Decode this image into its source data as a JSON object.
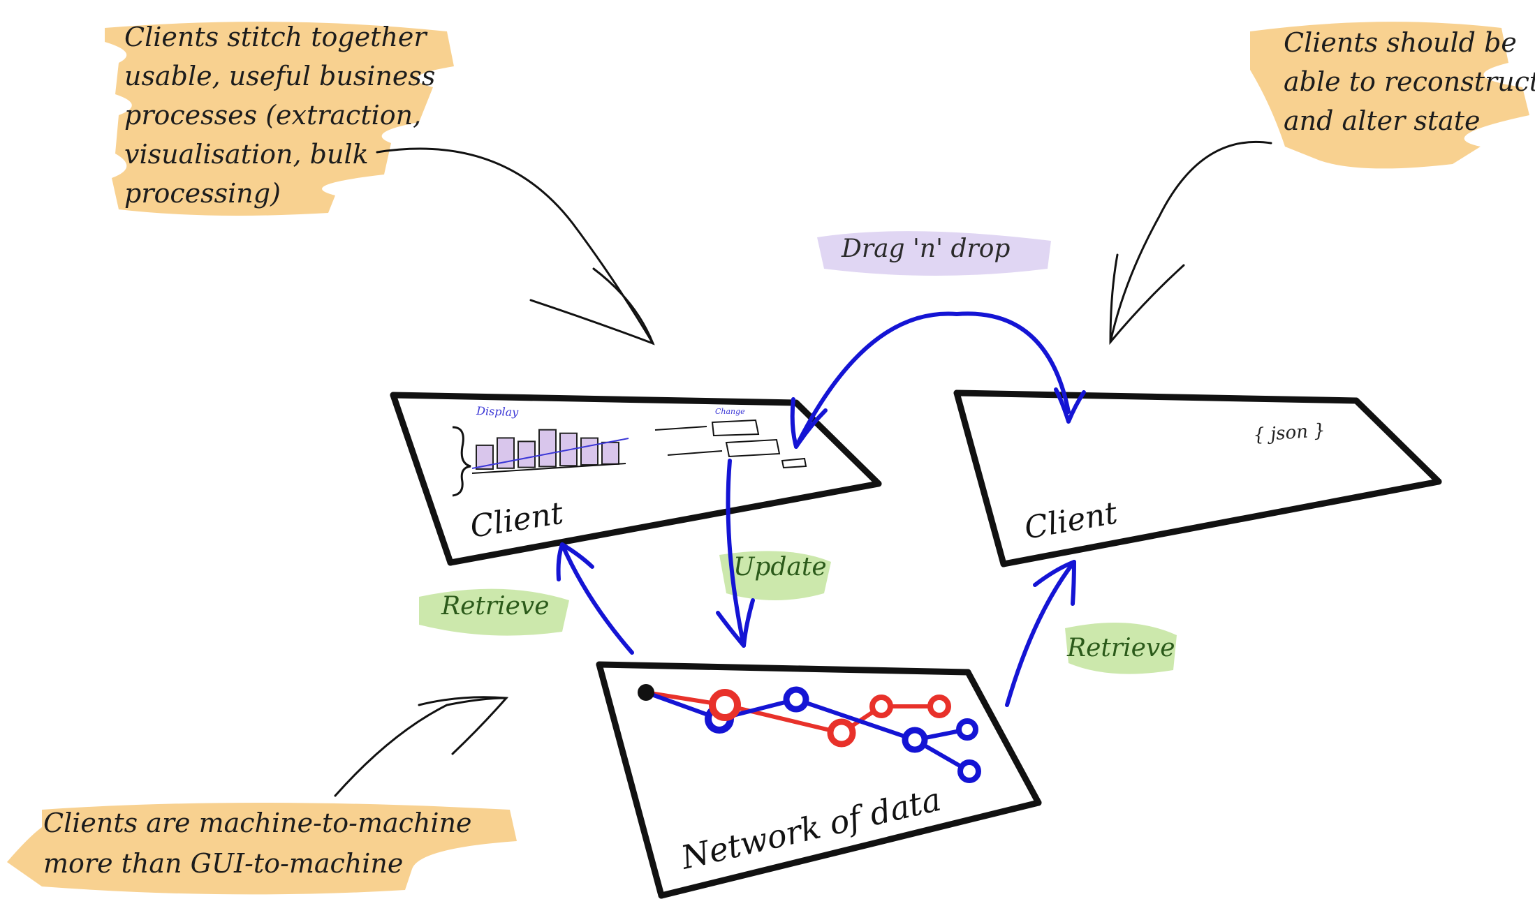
{
  "notes": {
    "top_left": [
      "Clients stitch together",
      "usable, useful business",
      "processes (extraction,",
      "visualisation, bulk",
      "processing)"
    ],
    "top_right": [
      "Clients should be",
      "able to reconstruct",
      "and alter state"
    ],
    "bottom_left": [
      "Clients are machine-to-machine",
      "more than GUI-to-machine"
    ]
  },
  "arrows": {
    "drag_drop": "Drag 'n' drop",
    "update": "Update",
    "retrieve_left": "Retrieve",
    "retrieve_right": "Retrieve"
  },
  "client_left": {
    "label": "Client",
    "display_caption": "Display",
    "change_caption": "Change",
    "bar_values": [
      0.55,
      0.7,
      0.6,
      0.85,
      0.75,
      0.62,
      0.5
    ]
  },
  "client_right": {
    "label": "Client",
    "payload": "{ json }"
  },
  "network": {
    "label": "Network of data"
  },
  "colors": {
    "blue": "#1414d4",
    "red": "#e8312a",
    "highlight_orange": "#f7c97c",
    "highlight_green": "#c6e6a3",
    "highlight_purple": "#ddd2f2"
  }
}
